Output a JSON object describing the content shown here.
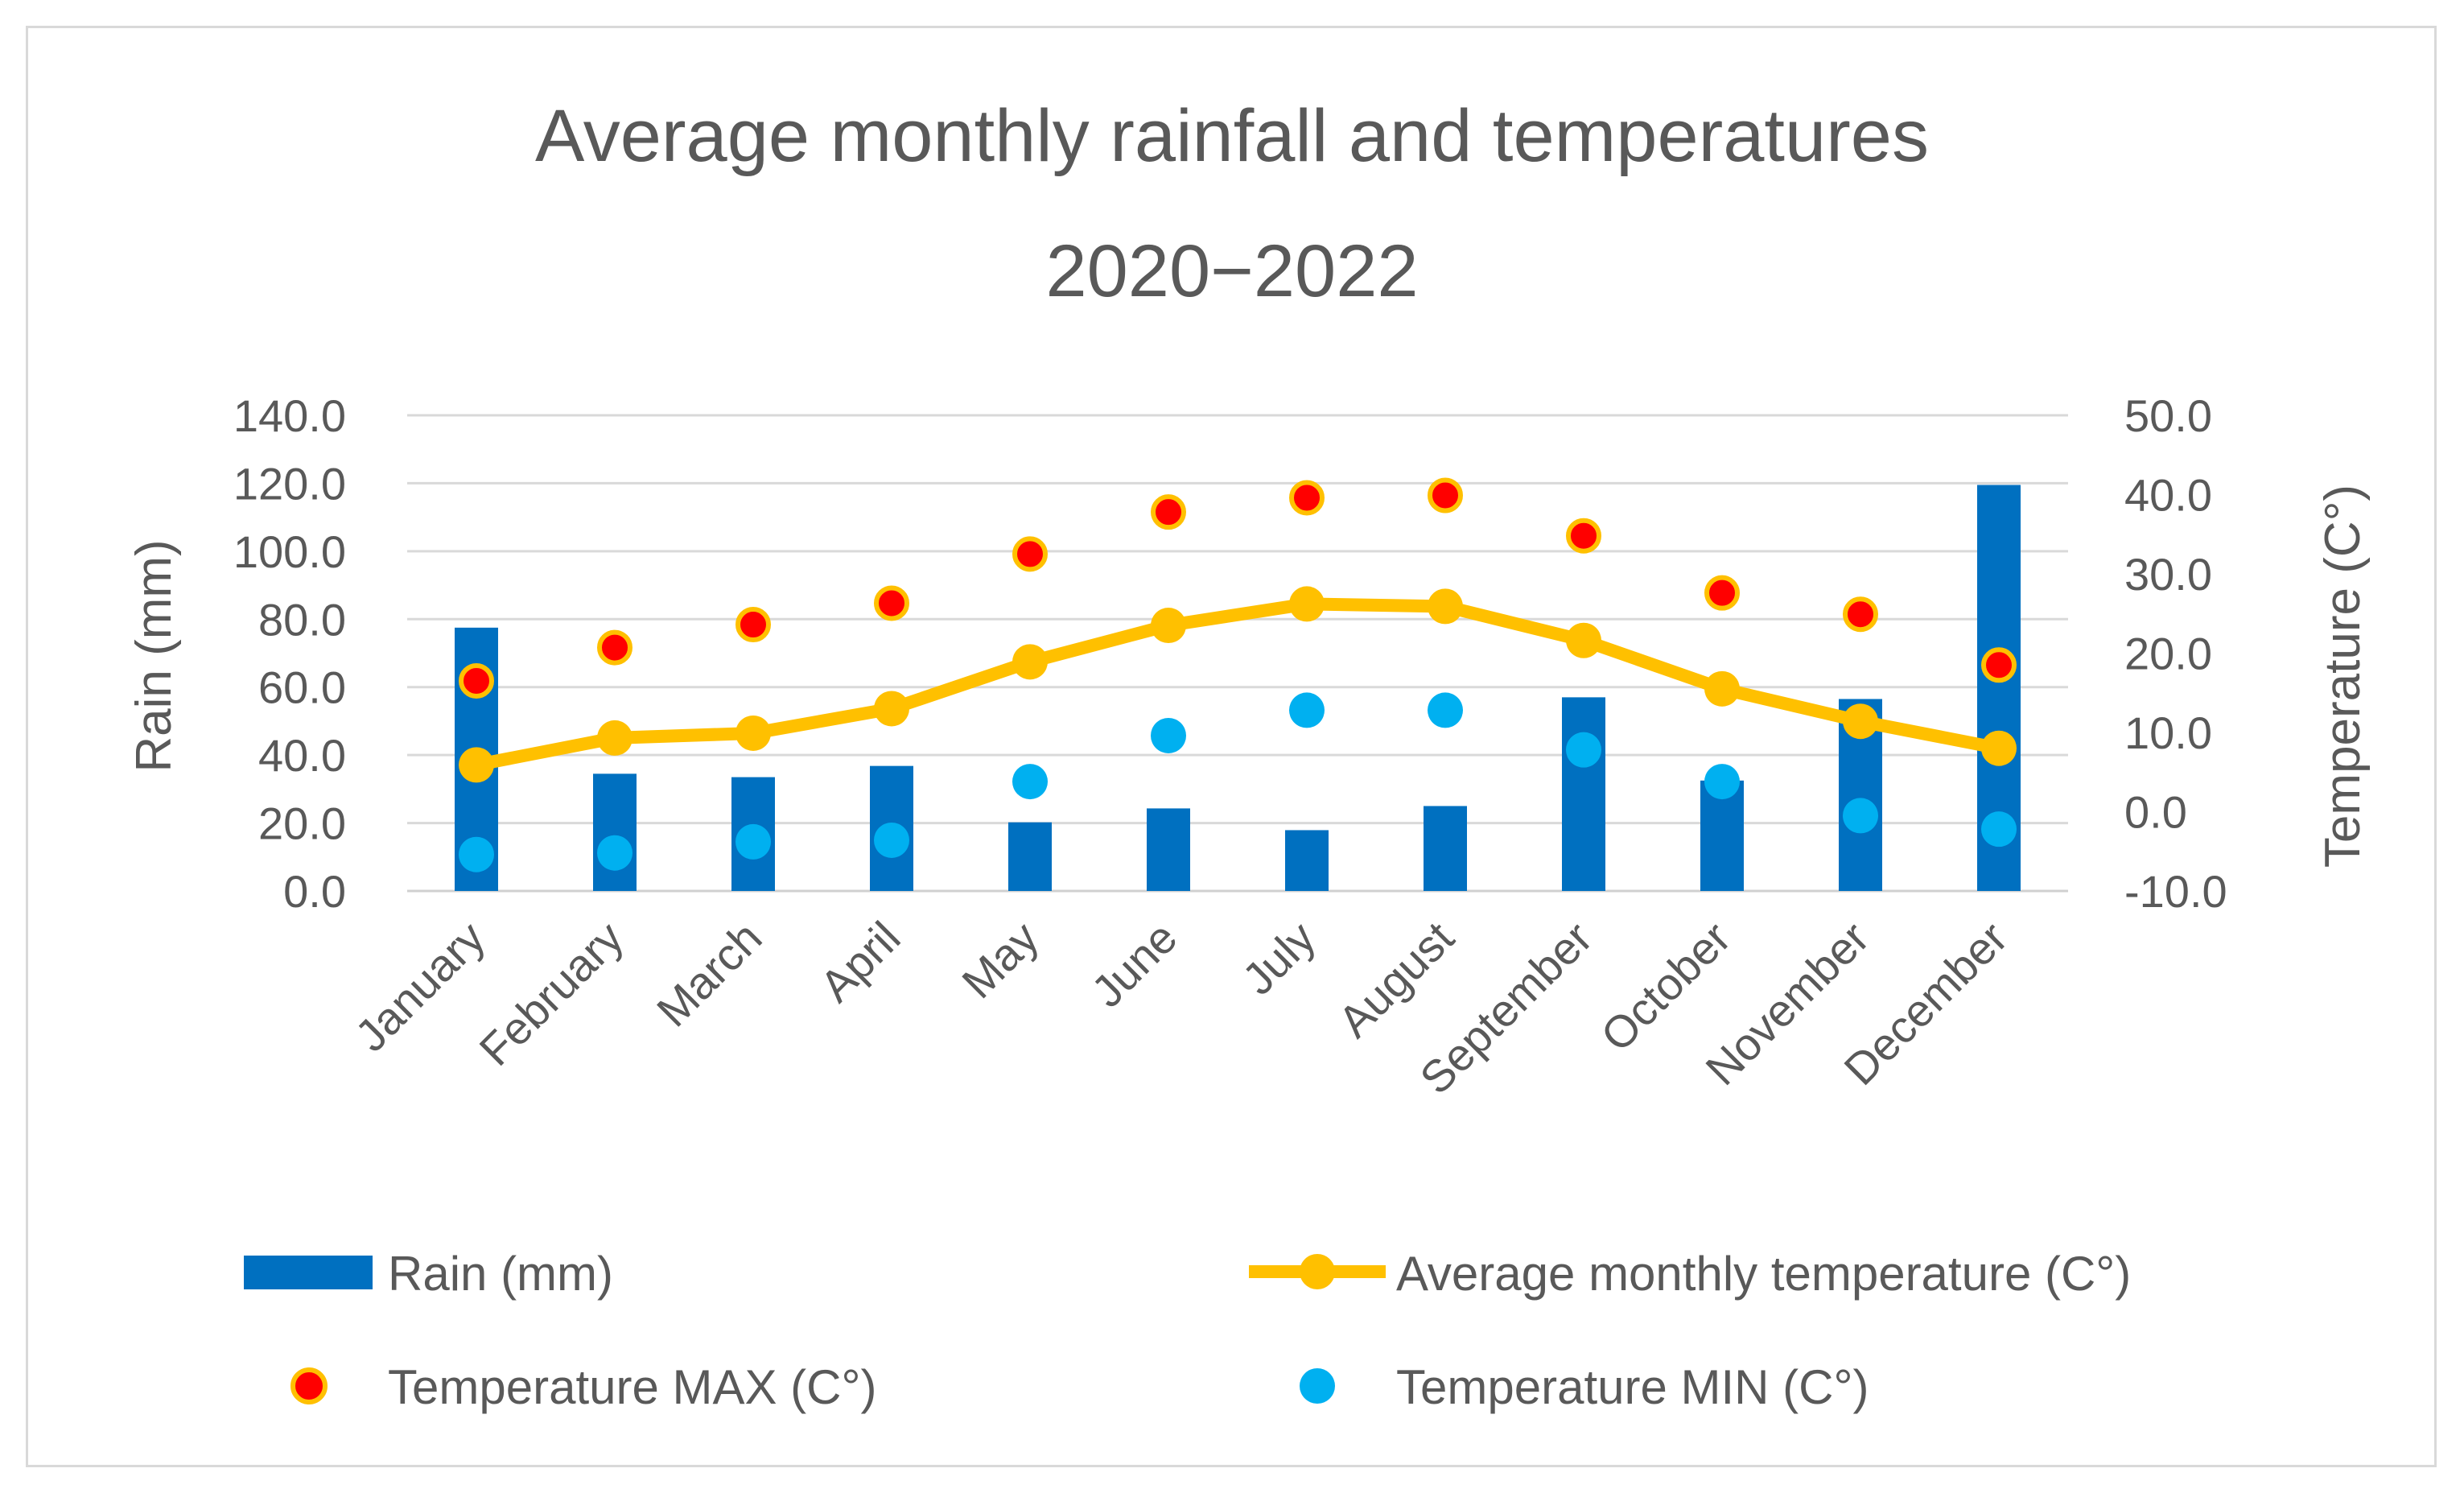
{
  "chart_data": {
    "type": "bar",
    "title": "Average monthly rainfall and temperatures",
    "subtitle": "2020−2022",
    "categories": [
      "January",
      "February",
      "March",
      "April",
      "May",
      "June",
      "July",
      "August",
      "September",
      "October",
      "November",
      "December"
    ],
    "ylabel": "Rain (mm)",
    "y2label": "Temperature (C°)",
    "ylim": [
      0,
      140
    ],
    "y2lim": [
      -10,
      50
    ],
    "yticks": [
      "0.0",
      "20.0",
      "40.0",
      "60.0",
      "80.0",
      "100.0",
      "120.0",
      "140.0"
    ],
    "y2ticks": [
      "-10.0",
      "0.0",
      "10.0",
      "20.0",
      "30.0",
      "40.0",
      "50.0"
    ],
    "grid": true,
    "legend_position": "bottom",
    "series": [
      {
        "name": "Rain (mm)",
        "type": "bar",
        "axis": "left",
        "color": "#0070c0",
        "values": [
          77.5,
          34.5,
          33.5,
          36.8,
          20.2,
          24.3,
          17.9,
          25.0,
          57.0,
          32.5,
          56.5,
          119.5
        ]
      },
      {
        "name": "Average monthly temperature (C°)",
        "type": "line",
        "axis": "right",
        "color": "#ffc000",
        "values": [
          5.9,
          9.3,
          9.9,
          13.0,
          18.9,
          23.5,
          26.2,
          25.9,
          21.6,
          15.5,
          11.4,
          8.0
        ]
      },
      {
        "name": "Temperature MAX (C°)",
        "type": "scatter",
        "axis": "right",
        "color": "#ff0000",
        "edge_color": "#ffc000",
        "values": [
          16.5,
          20.7,
          23.6,
          26.3,
          32.5,
          37.8,
          39.6,
          39.9,
          34.8,
          27.6,
          24.9,
          18.5
        ]
      },
      {
        "name": "Temperature MIN (C°)",
        "type": "scatter",
        "axis": "right",
        "color": "#00b0f0",
        "values": [
          -5.4,
          -5.2,
          -3.8,
          -3.6,
          3.8,
          9.6,
          12.8,
          12.8,
          7.8,
          3.8,
          -0.5,
          -2.2
        ]
      }
    ]
  }
}
